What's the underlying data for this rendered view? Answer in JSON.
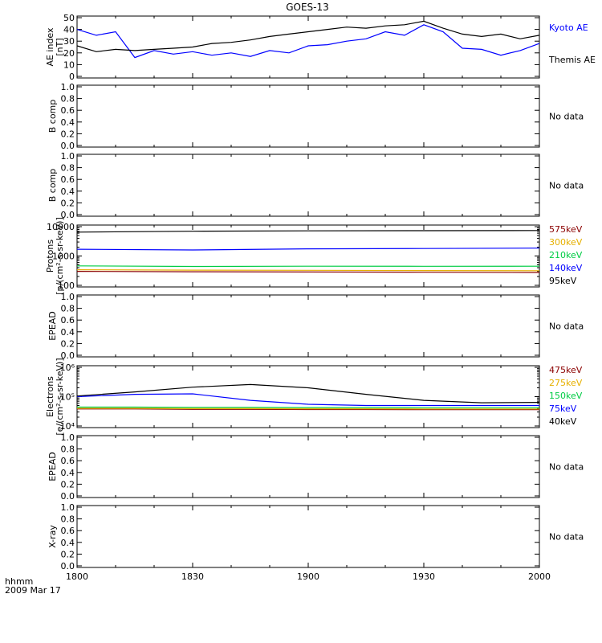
{
  "title": "GOES-13",
  "x_axis": {
    "ticks": [
      "1800",
      "1830",
      "1900",
      "1930",
      "2000"
    ],
    "label_line1": "hhmm",
    "label_line2": "2009 Mar 17"
  },
  "no_data_label": "No data",
  "chart_data": [
    {
      "panel": "ae",
      "type": "line",
      "ylabel": [
        "AE index",
        "[nT]"
      ],
      "ylim": [
        0,
        50
      ],
      "yticks": [
        "0",
        "10",
        "20",
        "30",
        "40",
        "50"
      ],
      "x": [
        0,
        5,
        10,
        15,
        20,
        25,
        30,
        35,
        40,
        45,
        50,
        55,
        60,
        65,
        70,
        75,
        80,
        85,
        90,
        95,
        100,
        105,
        110,
        115,
        120
      ],
      "series": [
        {
          "name": "Kyoto AE",
          "color": "#0000ff",
          "values": [
            40,
            35,
            38,
            16,
            22,
            19,
            21,
            18,
            20,
            17,
            22,
            20,
            26,
            27,
            30,
            32,
            38,
            35,
            44,
            38,
            24,
            23,
            18,
            22,
            28
          ]
        },
        {
          "name": "Themis AE",
          "color": "#000000",
          "values": [
            26,
            21,
            23,
            22,
            23,
            24,
            25,
            28,
            29,
            31,
            34,
            36,
            38,
            40,
            42,
            41,
            43,
            44,
            47,
            41,
            36,
            34,
            36,
            32,
            35
          ]
        }
      ],
      "legend": "right"
    },
    {
      "panel": "bcomp1",
      "ylabel": [
        "B comp"
      ],
      "ylim": [
        0,
        1
      ],
      "yticks": [
        "0.0",
        "0.2",
        "0.4",
        "0.6",
        "0.8",
        "1.0"
      ]
    },
    {
      "panel": "bcomp2",
      "ylabel": [
        "B comp"
      ],
      "ylim": [
        0,
        1
      ],
      "yticks": [
        "0.0",
        "0.2",
        "0.4",
        "0.6",
        "0.8",
        "1.0"
      ]
    },
    {
      "panel": "protons",
      "type": "line",
      "log": true,
      "ylabel": [
        "Protons",
        "[p/(cm²-s-sr-keV)]"
      ],
      "ylim": [
        100,
        10000
      ],
      "yticks": [
        "100",
        "1000",
        "10000"
      ],
      "x": [
        0,
        30,
        60,
        90,
        120
      ],
      "series": [
        {
          "name": "575keV",
          "color": "#8b0000",
          "values": [
            300,
            290,
            285,
            280,
            275
          ]
        },
        {
          "name": "300keV",
          "color": "#e6b000",
          "values": [
            340,
            330,
            325,
            320,
            315
          ]
        },
        {
          "name": "210keV",
          "color": "#00cc44",
          "values": [
            460,
            440,
            450,
            445,
            450
          ]
        },
        {
          "name": "140keV",
          "color": "#0000ff",
          "values": [
            1700,
            1600,
            1750,
            1800,
            1850
          ]
        },
        {
          "name": "95keV",
          "color": "#000000",
          "values": [
            6500,
            7000,
            7200,
            7300,
            7400
          ]
        }
      ],
      "legend": "right"
    },
    {
      "panel": "epead1",
      "ylabel": [
        "EPEAD"
      ],
      "ylim": [
        0,
        1
      ],
      "yticks": [
        "0.0",
        "0.2",
        "0.4",
        "0.6",
        "0.8",
        "1.0"
      ]
    },
    {
      "panel": "electrons",
      "type": "line",
      "log": true,
      "ylabel": [
        "Electrons",
        "[e/(cm²-s-sr-keV)]"
      ],
      "ylim": [
        10000,
        1000000
      ],
      "yticks": [
        "10⁴",
        "10⁵",
        "10⁶"
      ],
      "x": [
        0,
        15,
        30,
        45,
        60,
        75,
        90,
        105,
        120
      ],
      "series": [
        {
          "name": "475keV",
          "color": "#8b0000",
          "values": [
            38000,
            38000,
            37000,
            37000,
            36500,
            36500,
            36000,
            36000,
            36000
          ]
        },
        {
          "name": "275keV",
          "color": "#e6b000",
          "values": [
            40000,
            40000,
            39000,
            39000,
            38500,
            38500,
            38000,
            38000,
            38000
          ]
        },
        {
          "name": "150keV",
          "color": "#00cc44",
          "values": [
            44000,
            44000,
            43000,
            43000,
            42500,
            42500,
            42000,
            42000,
            42000
          ]
        },
        {
          "name": "75keV",
          "color": "#0000ff",
          "values": [
            100000,
            120000,
            125000,
            75000,
            55000,
            50000,
            50000,
            50000,
            50000
          ]
        },
        {
          "name": "40keV",
          "color": "#000000",
          "values": [
            105000,
            145000,
            210000,
            260000,
            200000,
            120000,
            75000,
            62000,
            64000
          ]
        }
      ],
      "legend": "right"
    },
    {
      "panel": "epead2",
      "ylabel": [
        "EPEAD"
      ],
      "ylim": [
        0,
        1
      ],
      "yticks": [
        "0.0",
        "0.2",
        "0.4",
        "0.6",
        "0.8",
        "1.0"
      ]
    },
    {
      "panel": "xray",
      "ylabel": [
        "X-ray"
      ],
      "ylim": [
        0,
        1
      ],
      "yticks": [
        "0.0",
        "0.2",
        "0.4",
        "0.6",
        "0.8",
        "1.0"
      ]
    }
  ]
}
